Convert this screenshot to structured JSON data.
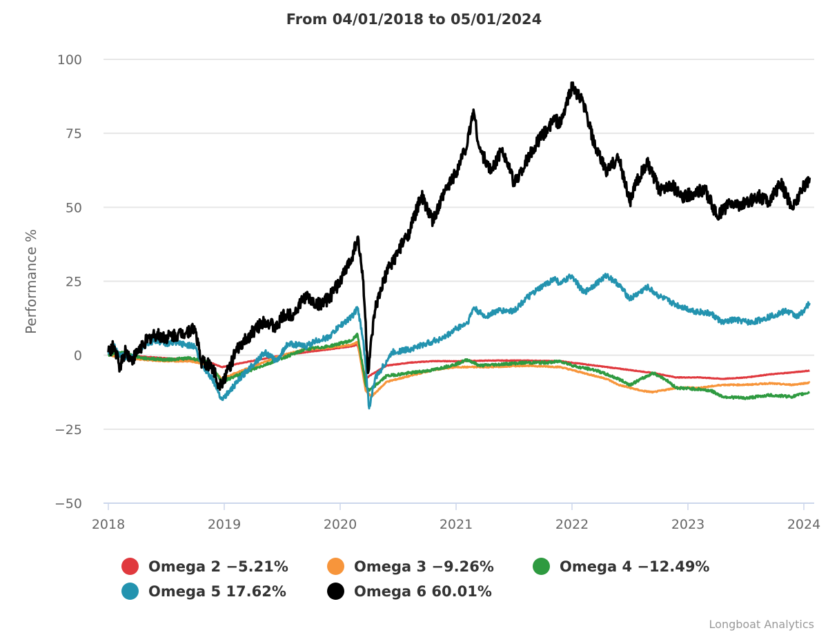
{
  "chart_data": {
    "type": "line",
    "title": "From 04/01/2018 to 05/01/2024",
    "xlabel": "",
    "ylabel": "Performance %",
    "xlim": [
      2018.0,
      2024.08
    ],
    "ylim": [
      -50,
      100
    ],
    "yticks": [
      100,
      75,
      50,
      25,
      0,
      -25,
      -50
    ],
    "ytick_labels": [
      "100",
      "75",
      "50",
      "25",
      "0",
      "−25",
      "−50"
    ],
    "xticks": [
      2018,
      2019,
      2020,
      2021,
      2022,
      2023,
      2024
    ],
    "xtick_labels": [
      "2018",
      "2019",
      "2020",
      "2021",
      "2022",
      "2023",
      "2024"
    ],
    "grid": true,
    "legend_position": "bottom",
    "credit": "Longboat Analytics",
    "series": [
      {
        "name": "Omega 2",
        "legend_label": "Omega 2 −5.21%",
        "color": "#e0393e",
        "final": -5.21,
        "points": [
          [
            2018.0,
            0
          ],
          [
            2018.1,
            0.5
          ],
          [
            2018.3,
            -0.5
          ],
          [
            2018.5,
            -1
          ],
          [
            2018.7,
            -1.5
          ],
          [
            2018.85,
            -2
          ],
          [
            2018.98,
            -4
          ],
          [
            2019.1,
            -3
          ],
          [
            2019.3,
            -1.5
          ],
          [
            2019.5,
            0
          ],
          [
            2019.7,
            1
          ],
          [
            2019.9,
            2
          ],
          [
            2020.1,
            3
          ],
          [
            2020.15,
            3.5
          ],
          [
            2020.22,
            -8
          ],
          [
            2020.25,
            -7
          ],
          [
            2020.4,
            -3.5
          ],
          [
            2020.6,
            -2.5
          ],
          [
            2020.8,
            -2
          ],
          [
            2021.0,
            -2
          ],
          [
            2021.3,
            -1.8
          ],
          [
            2021.6,
            -1.8
          ],
          [
            2021.9,
            -2
          ],
          [
            2022.1,
            -3
          ],
          [
            2022.3,
            -4
          ],
          [
            2022.5,
            -5
          ],
          [
            2022.7,
            -6
          ],
          [
            2022.9,
            -7.5
          ],
          [
            2023.1,
            -7.5
          ],
          [
            2023.3,
            -8
          ],
          [
            2023.5,
            -7.5
          ],
          [
            2023.7,
            -6.5
          ],
          [
            2023.9,
            -5.8
          ],
          [
            2024.05,
            -5.21
          ]
        ]
      },
      {
        "name": "Omega 3",
        "legend_label": "Omega 3 −9.26%",
        "color": "#f7953b",
        "final": -9.26,
        "points": [
          [
            2018.0,
            0
          ],
          [
            2018.1,
            -0.5
          ],
          [
            2018.3,
            -1.5
          ],
          [
            2018.5,
            -2
          ],
          [
            2018.7,
            -2
          ],
          [
            2018.85,
            -3
          ],
          [
            2018.98,
            -8
          ],
          [
            2019.1,
            -6
          ],
          [
            2019.3,
            -3
          ],
          [
            2019.5,
            0
          ],
          [
            2019.7,
            2
          ],
          [
            2019.9,
            2.5
          ],
          [
            2020.1,
            3.5
          ],
          [
            2020.15,
            4.5
          ],
          [
            2020.22,
            -12
          ],
          [
            2020.27,
            -14
          ],
          [
            2020.4,
            -9
          ],
          [
            2020.6,
            -7
          ],
          [
            2020.8,
            -5
          ],
          [
            2021.0,
            -4
          ],
          [
            2021.3,
            -4
          ],
          [
            2021.6,
            -3.5
          ],
          [
            2021.9,
            -4
          ],
          [
            2022.1,
            -6
          ],
          [
            2022.3,
            -8
          ],
          [
            2022.4,
            -10
          ],
          [
            2022.6,
            -12
          ],
          [
            2022.7,
            -12.5
          ],
          [
            2022.9,
            -11
          ],
          [
            2023.1,
            -11
          ],
          [
            2023.3,
            -10
          ],
          [
            2023.5,
            -10
          ],
          [
            2023.7,
            -9.5
          ],
          [
            2023.9,
            -10
          ],
          [
            2024.05,
            -9.26
          ]
        ]
      },
      {
        "name": "Omega 4",
        "legend_label": "Omega 4 −12.49%",
        "color": "#2e9a40",
        "final": -12.49,
        "points": [
          [
            2018.0,
            0
          ],
          [
            2018.1,
            1
          ],
          [
            2018.3,
            -1
          ],
          [
            2018.5,
            -1.5
          ],
          [
            2018.7,
            -1
          ],
          [
            2018.85,
            -2
          ],
          [
            2018.98,
            -9
          ],
          [
            2019.1,
            -7
          ],
          [
            2019.3,
            -4
          ],
          [
            2019.5,
            -1
          ],
          [
            2019.7,
            2
          ],
          [
            2019.9,
            3
          ],
          [
            2020.1,
            5
          ],
          [
            2020.15,
            7
          ],
          [
            2020.22,
            -10
          ],
          [
            2020.25,
            -12
          ],
          [
            2020.4,
            -7
          ],
          [
            2020.6,
            -6
          ],
          [
            2020.8,
            -5
          ],
          [
            2021.0,
            -3
          ],
          [
            2021.1,
            -1.5
          ],
          [
            2021.2,
            -3.5
          ],
          [
            2021.4,
            -3
          ],
          [
            2021.6,
            -2.5
          ],
          [
            2021.8,
            -2.5
          ],
          [
            2021.9,
            -2
          ],
          [
            2022.05,
            -4
          ],
          [
            2022.2,
            -5
          ],
          [
            2022.4,
            -8
          ],
          [
            2022.5,
            -10
          ],
          [
            2022.6,
            -8
          ],
          [
            2022.7,
            -6
          ],
          [
            2022.8,
            -8
          ],
          [
            2022.9,
            -11
          ],
          [
            2023.1,
            -11.5
          ],
          [
            2023.2,
            -12
          ],
          [
            2023.3,
            -14
          ],
          [
            2023.5,
            -14.5
          ],
          [
            2023.7,
            -13.5
          ],
          [
            2023.9,
            -14
          ],
          [
            2024.05,
            -12.49
          ]
        ]
      },
      {
        "name": "Omega 5",
        "legend_label": "Omega 5 17.62%",
        "color": "#2393af",
        "final": 17.62,
        "points": [
          [
            2018.0,
            1
          ],
          [
            2018.05,
            3
          ],
          [
            2018.1,
            0
          ],
          [
            2018.2,
            -1
          ],
          [
            2018.3,
            3
          ],
          [
            2018.4,
            5
          ],
          [
            2018.5,
            4
          ],
          [
            2018.6,
            4
          ],
          [
            2018.75,
            3
          ],
          [
            2018.8,
            -3
          ],
          [
            2018.9,
            -8
          ],
          [
            2018.98,
            -15
          ],
          [
            2019.05,
            -12
          ],
          [
            2019.2,
            -5
          ],
          [
            2019.35,
            1
          ],
          [
            2019.45,
            -2
          ],
          [
            2019.55,
            4
          ],
          [
            2019.7,
            3
          ],
          [
            2019.8,
            5
          ],
          [
            2019.9,
            6
          ],
          [
            2020.0,
            10
          ],
          [
            2020.1,
            13
          ],
          [
            2020.15,
            16
          ],
          [
            2020.2,
            5
          ],
          [
            2020.25,
            -18
          ],
          [
            2020.3,
            -8
          ],
          [
            2020.45,
            1
          ],
          [
            2020.6,
            2
          ],
          [
            2020.75,
            4
          ],
          [
            2020.9,
            6
          ],
          [
            2021.0,
            9
          ],
          [
            2021.1,
            11
          ],
          [
            2021.15,
            16
          ],
          [
            2021.25,
            13
          ],
          [
            2021.35,
            15
          ],
          [
            2021.5,
            15
          ],
          [
            2021.6,
            19
          ],
          [
            2021.7,
            22
          ],
          [
            2021.85,
            26
          ],
          [
            2021.9,
            24
          ],
          [
            2022.0,
            27
          ],
          [
            2022.1,
            21
          ],
          [
            2022.2,
            24
          ],
          [
            2022.3,
            27
          ],
          [
            2022.4,
            24
          ],
          [
            2022.5,
            19
          ],
          [
            2022.65,
            23
          ],
          [
            2022.75,
            20
          ],
          [
            2022.9,
            17
          ],
          [
            2023.05,
            15
          ],
          [
            2023.2,
            14
          ],
          [
            2023.3,
            11
          ],
          [
            2023.4,
            12
          ],
          [
            2023.55,
            11
          ],
          [
            2023.7,
            13
          ],
          [
            2023.85,
            15
          ],
          [
            2023.95,
            13
          ],
          [
            2024.05,
            17.62
          ]
        ]
      },
      {
        "name": "Omega 6",
        "legend_label": "Omega 6 60.01%",
        "color": "#000000",
        "final": 60.01,
        "points": [
          [
            2018.0,
            1
          ],
          [
            2018.05,
            3
          ],
          [
            2018.1,
            -4
          ],
          [
            2018.15,
            2
          ],
          [
            2018.2,
            -2
          ],
          [
            2018.3,
            4
          ],
          [
            2018.4,
            7
          ],
          [
            2018.5,
            6
          ],
          [
            2018.6,
            7
          ],
          [
            2018.75,
            9
          ],
          [
            2018.8,
            -2
          ],
          [
            2018.9,
            -4
          ],
          [
            2018.95,
            -10
          ],
          [
            2019.0,
            -8
          ],
          [
            2019.1,
            1
          ],
          [
            2019.2,
            6
          ],
          [
            2019.35,
            12
          ],
          [
            2019.45,
            9
          ],
          [
            2019.5,
            13
          ],
          [
            2019.6,
            14
          ],
          [
            2019.7,
            20
          ],
          [
            2019.8,
            17
          ],
          [
            2019.9,
            19
          ],
          [
            2020.0,
            25
          ],
          [
            2020.1,
            33
          ],
          [
            2020.15,
            40
          ],
          [
            2020.2,
            25
          ],
          [
            2020.24,
            -6
          ],
          [
            2020.3,
            15
          ],
          [
            2020.4,
            28
          ],
          [
            2020.5,
            35
          ],
          [
            2020.6,
            42
          ],
          [
            2020.7,
            54
          ],
          [
            2020.8,
            45
          ],
          [
            2020.9,
            55
          ],
          [
            2021.0,
            62
          ],
          [
            2021.1,
            72
          ],
          [
            2021.15,
            83
          ],
          [
            2021.2,
            70
          ],
          [
            2021.3,
            62
          ],
          [
            2021.4,
            70
          ],
          [
            2021.5,
            58
          ],
          [
            2021.6,
            65
          ],
          [
            2021.7,
            72
          ],
          [
            2021.8,
            77
          ],
          [
            2021.85,
            80
          ],
          [
            2021.9,
            78
          ],
          [
            2022.0,
            91
          ],
          [
            2022.1,
            85
          ],
          [
            2022.2,
            70
          ],
          [
            2022.3,
            62
          ],
          [
            2022.4,
            67
          ],
          [
            2022.5,
            52
          ],
          [
            2022.55,
            58
          ],
          [
            2022.65,
            65
          ],
          [
            2022.75,
            56
          ],
          [
            2022.85,
            58
          ],
          [
            2022.95,
            53
          ],
          [
            2023.05,
            55
          ],
          [
            2023.15,
            56
          ],
          [
            2023.25,
            47
          ],
          [
            2023.35,
            51
          ],
          [
            2023.5,
            51
          ],
          [
            2023.6,
            54
          ],
          [
            2023.7,
            52
          ],
          [
            2023.8,
            58
          ],
          [
            2023.9,
            50
          ],
          [
            2024.0,
            57
          ],
          [
            2024.05,
            60.01
          ]
        ]
      }
    ]
  }
}
